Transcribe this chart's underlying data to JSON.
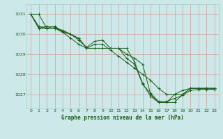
{
  "title": "Graphe pression niveau de la mer (hPa)",
  "background_color": "#cce8e8",
  "grid_color": "#aad0d0",
  "line_color": "#1a5c1a",
  "marker_color": "#1a5c1a",
  "xlim": [
    -0.5,
    23.5
  ],
  "ylim": [
    1026.3,
    1031.5
  ],
  "xticks": [
    0,
    1,
    2,
    3,
    4,
    5,
    6,
    7,
    8,
    9,
    10,
    11,
    12,
    13,
    14,
    15,
    16,
    17,
    18,
    19,
    20,
    21,
    22,
    23
  ],
  "yticks": [
    1027,
    1028,
    1029,
    1030,
    1031
  ],
  "series": [
    [
      1031.0,
      1031.0,
      1030.3,
      1030.3,
      1030.2,
      1030.0,
      1029.8,
      1029.3,
      1029.3,
      1029.3,
      1029.3,
      1029.3,
      1029.0,
      1028.8,
      1028.5,
      1027.0,
      1026.6,
      1026.6,
      1026.6,
      1027.0,
      1027.3,
      1027.3,
      1027.3,
      1027.3
    ],
    [
      1031.0,
      1030.3,
      1030.3,
      1030.3,
      1030.1,
      1029.8,
      1029.5,
      1029.3,
      1029.5,
      1029.5,
      1029.2,
      1028.9,
      1028.6,
      1028.3,
      1028.0,
      1027.7,
      1027.3,
      1027.0,
      1027.0,
      1027.2,
      1027.3,
      1027.3,
      1027.3,
      1027.3
    ],
    [
      1031.0,
      1030.3,
      1030.4,
      1030.35,
      1030.1,
      1030.0,
      1029.7,
      1029.35,
      1029.65,
      1029.7,
      1029.3,
      1029.3,
      1029.3,
      1028.6,
      1027.55,
      1026.9,
      1026.6,
      1026.6,
      1027.0,
      1027.0,
      1027.3,
      1027.3,
      1027.3,
      1027.3
    ],
    [
      1031.0,
      1030.4,
      1030.3,
      1030.4,
      1030.15,
      1030.0,
      1029.8,
      1029.3,
      1029.3,
      1029.3,
      1029.3,
      1029.3,
      1028.8,
      1028.5,
      1027.5,
      1027.05,
      1026.65,
      1026.65,
      1026.8,
      1026.95,
      1027.2,
      1027.25,
      1027.25,
      1027.25
    ]
  ]
}
